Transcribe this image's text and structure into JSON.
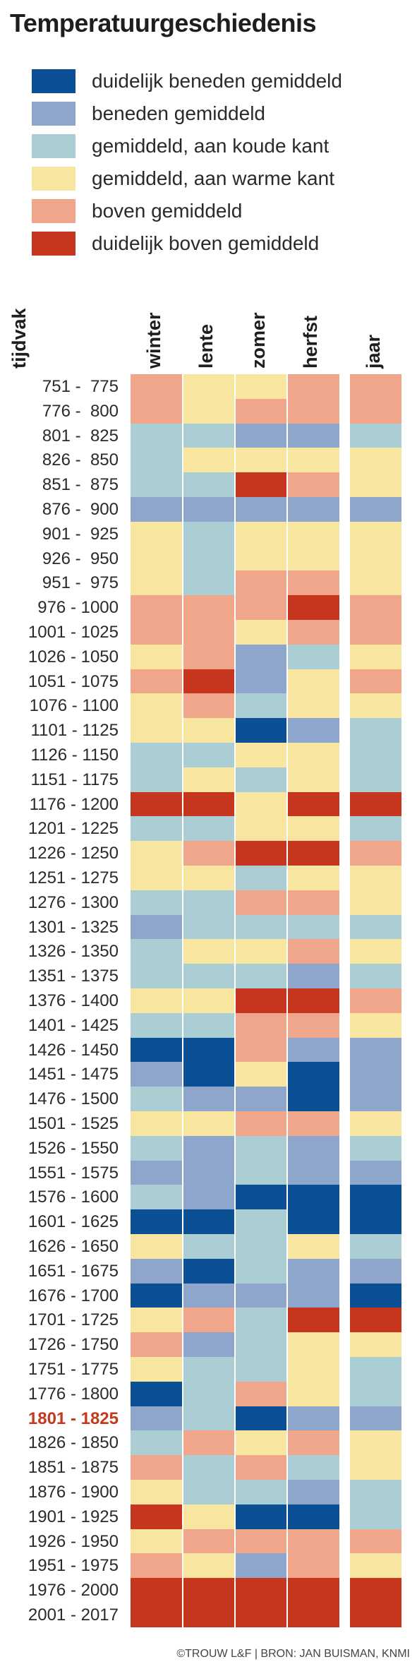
{
  "title": "Temperatuurgeschiedenis",
  "source": "©TROUW L&F | BRON: JAN BUISMAN, KNMI",
  "colors": {
    "dd": "#0b4f95",
    "bg": "#8fa6cc",
    "mk": "#abced5",
    "mw": "#f8e59f",
    "bo": "#f0a68a",
    "db": "#c6361f"
  },
  "legend": [
    {
      "key": "dd",
      "label": "duidelijk beneden gemiddeld"
    },
    {
      "key": "bg",
      "label": "beneden gemiddeld"
    },
    {
      "key": "mk",
      "label": "gemiddeld, aan koude kant"
    },
    {
      "key": "mw",
      "label": "gemiddeld, aan warme kant"
    },
    {
      "key": "bo",
      "label": "boven gemiddeld"
    },
    {
      "key": "db",
      "label": "duidelijk boven gemiddeld"
    }
  ],
  "chart_data": {
    "type": "heatmap",
    "row_axis_label": "tijdvak",
    "columns": [
      "winter",
      "lente",
      "zomer",
      "herfst",
      "jaar"
    ],
    "highlight_period": "1801 - 1825",
    "rows": [
      {
        "period": "751 -  775",
        "values": [
          "bo",
          "mw",
          "mw",
          "bo",
          "bo"
        ]
      },
      {
        "period": "776 -  800",
        "values": [
          "bo",
          "mw",
          "bo",
          "bo",
          "bo"
        ]
      },
      {
        "period": "801 -  825",
        "values": [
          "mk",
          "mk",
          "bg",
          "bg",
          "mk"
        ]
      },
      {
        "period": "826 -  850",
        "values": [
          "mk",
          "mw",
          "mw",
          "mw",
          "mw"
        ]
      },
      {
        "period": "851 -  875",
        "values": [
          "mk",
          "mk",
          "db",
          "bo",
          "mw"
        ]
      },
      {
        "period": "876 -  900",
        "values": [
          "bg",
          "bg",
          "bg",
          "bg",
          "bg"
        ]
      },
      {
        "period": "901 -  925",
        "values": [
          "mw",
          "mk",
          "mw",
          "mw",
          "mw"
        ]
      },
      {
        "period": "926 -  950",
        "values": [
          "mw",
          "mk",
          "mw",
          "mw",
          "mw"
        ]
      },
      {
        "period": "951 -  975",
        "values": [
          "mw",
          "mk",
          "bo",
          "bo",
          "mw"
        ]
      },
      {
        "period": "976 - 1000",
        "values": [
          "bo",
          "bo",
          "bo",
          "db",
          "bo"
        ]
      },
      {
        "period": "1001 - 1025",
        "values": [
          "bo",
          "bo",
          "mw",
          "bo",
          "bo"
        ]
      },
      {
        "period": "1026 - 1050",
        "values": [
          "mw",
          "bo",
          "bg",
          "mk",
          "mw"
        ]
      },
      {
        "period": "1051 - 1075",
        "values": [
          "bo",
          "db",
          "bg",
          "mw",
          "bo"
        ]
      },
      {
        "period": "1076 - 1100",
        "values": [
          "mw",
          "bo",
          "mk",
          "mw",
          "mw"
        ]
      },
      {
        "period": "1101 - 1125",
        "values": [
          "mw",
          "mw",
          "dd",
          "bg",
          "mk"
        ]
      },
      {
        "period": "1126 - 1150",
        "values": [
          "mk",
          "mk",
          "mw",
          "mw",
          "mk"
        ]
      },
      {
        "period": "1151 - 1175",
        "values": [
          "mk",
          "mw",
          "mk",
          "mw",
          "mk"
        ]
      },
      {
        "period": "1176 - 1200",
        "values": [
          "db",
          "db",
          "mw",
          "db",
          "db"
        ]
      },
      {
        "period": "1201 - 1225",
        "values": [
          "mk",
          "mk",
          "mw",
          "mw",
          "mk"
        ]
      },
      {
        "period": "1226 - 1250",
        "values": [
          "mw",
          "bo",
          "db",
          "db",
          "bo"
        ]
      },
      {
        "period": "1251 - 1275",
        "values": [
          "mw",
          "mw",
          "mk",
          "mw",
          "mw"
        ]
      },
      {
        "period": "1276 - 1300",
        "values": [
          "mk",
          "mk",
          "bo",
          "bo",
          "mw"
        ]
      },
      {
        "period": "1301 - 1325",
        "values": [
          "bg",
          "mk",
          "mk",
          "mk",
          "mk"
        ]
      },
      {
        "period": "1326 - 1350",
        "values": [
          "mk",
          "mw",
          "mw",
          "bo",
          "mw"
        ]
      },
      {
        "period": "1351 - 1375",
        "values": [
          "mk",
          "mk",
          "mk",
          "bg",
          "mk"
        ]
      },
      {
        "period": "1376 - 1400",
        "values": [
          "mw",
          "mw",
          "db",
          "db",
          "bo"
        ]
      },
      {
        "period": "1401 - 1425",
        "values": [
          "mk",
          "mk",
          "bo",
          "bo",
          "mw"
        ]
      },
      {
        "period": "1426 - 1450",
        "values": [
          "dd",
          "dd",
          "bo",
          "bg",
          "bg"
        ]
      },
      {
        "period": "1451 - 1475",
        "values": [
          "bg",
          "dd",
          "mw",
          "dd",
          "bg"
        ]
      },
      {
        "period": "1476 - 1500",
        "values": [
          "mk",
          "bg",
          "bg",
          "dd",
          "bg"
        ]
      },
      {
        "period": "1501 - 1525",
        "values": [
          "mw",
          "mw",
          "bo",
          "bo",
          "mw"
        ]
      },
      {
        "period": "1526 - 1550",
        "values": [
          "mk",
          "bg",
          "mk",
          "bg",
          "mk"
        ]
      },
      {
        "period": "1551 - 1575",
        "values": [
          "bg",
          "bg",
          "mk",
          "bg",
          "bg"
        ]
      },
      {
        "period": "1576 - 1600",
        "values": [
          "mk",
          "bg",
          "dd",
          "dd",
          "dd"
        ]
      },
      {
        "period": "1601 - 1625",
        "values": [
          "dd",
          "dd",
          "mk",
          "dd",
          "dd"
        ]
      },
      {
        "period": "1626 - 1650",
        "values": [
          "mw",
          "mk",
          "mk",
          "mw",
          "mk"
        ]
      },
      {
        "period": "1651 - 1675",
        "values": [
          "bg",
          "dd",
          "mk",
          "bg",
          "bg"
        ]
      },
      {
        "period": "1676 - 1700",
        "values": [
          "dd",
          "bg",
          "bg",
          "bg",
          "dd"
        ]
      },
      {
        "period": "1701 - 1725",
        "values": [
          "mw",
          "bo",
          "mk",
          "db",
          "db"
        ]
      },
      {
        "period": "1726 - 1750",
        "values": [
          "bo",
          "bg",
          "mk",
          "mw",
          "mw"
        ]
      },
      {
        "period": "1751 - 1775",
        "values": [
          "mw",
          "mk",
          "mk",
          "mw",
          "mk"
        ]
      },
      {
        "period": "1776 - 1800",
        "values": [
          "dd",
          "mk",
          "bo",
          "mw",
          "mk"
        ]
      },
      {
        "period": "1801 - 1825",
        "values": [
          "bg",
          "mk",
          "dd",
          "bg",
          "bg"
        ]
      },
      {
        "period": "1826 - 1850",
        "values": [
          "mk",
          "bo",
          "mw",
          "bo",
          "mw"
        ]
      },
      {
        "period": "1851 - 1875",
        "values": [
          "bo",
          "mk",
          "bo",
          "mk",
          "mw"
        ]
      },
      {
        "period": "1876 - 1900",
        "values": [
          "mw",
          "mk",
          "mk",
          "bg",
          "mk"
        ]
      },
      {
        "period": "1901 - 1925",
        "values": [
          "db",
          "mw",
          "dd",
          "dd",
          "mk"
        ]
      },
      {
        "period": "1926 - 1950",
        "values": [
          "mw",
          "bo",
          "bo",
          "bo",
          "bo"
        ]
      },
      {
        "period": "1951 - 1975",
        "values": [
          "bo",
          "mw",
          "bg",
          "bo",
          "mw"
        ]
      },
      {
        "period": "1976 - 2000",
        "values": [
          "db",
          "db",
          "db",
          "db",
          "db"
        ]
      },
      {
        "period": "2001 - 2017",
        "values": [
          "db",
          "db",
          "db",
          "db",
          "db"
        ]
      }
    ]
  }
}
